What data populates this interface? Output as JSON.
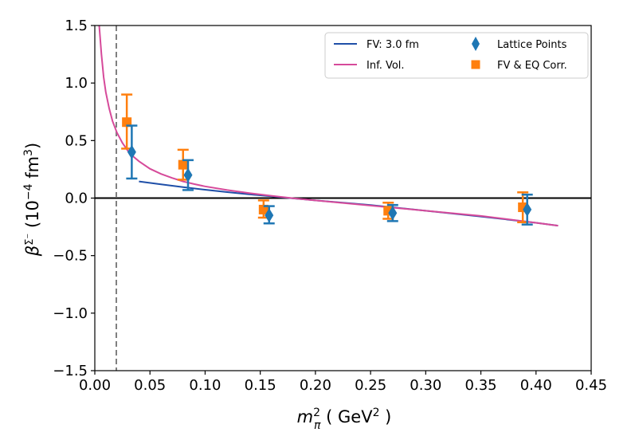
{
  "chart_data": {
    "type": "scatter",
    "xlim": [
      0.0,
      0.45
    ],
    "ylim": [
      -1.5,
      1.5
    ],
    "x_ticks": [
      "0.00",
      "0.05",
      "0.10",
      "0.15",
      "0.20",
      "0.25",
      "0.30",
      "0.35",
      "0.40",
      "0.45"
    ],
    "y_ticks": [
      "1.5",
      "1.0",
      "0.5",
      "0.0",
      "−0.5",
      "−1.0",
      "−1.5"
    ],
    "x_tick_values": [
      0.0,
      0.05,
      0.1,
      0.15,
      0.2,
      0.25,
      0.3,
      0.35,
      0.4,
      0.45
    ],
    "y_tick_values": [
      1.5,
      1.0,
      0.5,
      0.0,
      -0.5,
      -1.0,
      -1.5
    ],
    "xlabel": {
      "prefix": "m",
      "sup": "2",
      "sub": "π",
      "unit": " ( GeV",
      "unit_sup": "2",
      "unit_end": " )"
    },
    "ylabel": {
      "prefix": "β",
      "sup": "Σ⁻",
      "unit": "  (10",
      "unit_sup": "−4",
      "unit_mid": " fm",
      "unit_sup2": "3",
      "unit_end": ")"
    },
    "grid": false,
    "legend_position": "top-right",
    "legend": {
      "fv_label": "FV: 3.0 fm",
      "inf_label": "Inf. Vol.",
      "lattice_label": "Lattice Points",
      "corr_label": "FV & EQ Corr."
    },
    "colors": {
      "fv_curve": "#1f4fa8",
      "inf_curve": "#d64a9a",
      "lattice": "#1f77b4",
      "corrected": "#ff7f0e",
      "vline": "#808080",
      "hline": "#000000"
    },
    "reference_lines": {
      "vertical_x": 0.0195,
      "horizontal_y": 0.0
    },
    "series": [
      {
        "name": "Lattice Points",
        "marker": "diamond",
        "points": [
          {
            "x": 0.0335,
            "y": 0.4,
            "lo": 0.17,
            "hi": 0.63
          },
          {
            "x": 0.0845,
            "y": 0.2,
            "lo": 0.07,
            "hi": 0.33
          },
          {
            "x": 0.158,
            "y": -0.15,
            "lo": -0.22,
            "hi": -0.07
          },
          {
            "x": 0.27,
            "y": -0.13,
            "lo": -0.2,
            "hi": -0.06
          },
          {
            "x": 0.392,
            "y": -0.1,
            "lo": -0.23,
            "hi": 0.03
          }
        ]
      },
      {
        "name": "FV & EQ Corr.",
        "marker": "square",
        "points": [
          {
            "x": 0.029,
            "y": 0.66,
            "lo": 0.43,
            "hi": 0.9
          },
          {
            "x": 0.08,
            "y": 0.29,
            "lo": 0.16,
            "hi": 0.42
          },
          {
            "x": 0.153,
            "y": -0.1,
            "lo": -0.17,
            "hi": -0.02
          },
          {
            "x": 0.266,
            "y": -0.11,
            "lo": -0.18,
            "hi": -0.04
          },
          {
            "x": 0.388,
            "y": -0.08,
            "lo": -0.21,
            "hi": 0.05
          }
        ]
      },
      {
        "name": "FV: 3.0 fm",
        "marker": "line",
        "x": [
          0.04,
          0.06,
          0.08,
          0.1,
          0.12,
          0.14,
          0.16,
          0.18,
          0.2,
          0.25,
          0.3,
          0.35,
          0.4,
          0.42
        ],
        "y": [
          0.145,
          0.12,
          0.095,
          0.073,
          0.052,
          0.033,
          0.015,
          -0.003,
          -0.02,
          -0.06,
          -0.11,
          -0.16,
          -0.215,
          -0.24
        ]
      },
      {
        "name": "Inf. Vol.",
        "marker": "line",
        "x": [
          0.004,
          0.006,
          0.008,
          0.01,
          0.013,
          0.016,
          0.02,
          0.025,
          0.03,
          0.035,
          0.04,
          0.05,
          0.06,
          0.07,
          0.08,
          0.09,
          0.1,
          0.12,
          0.14,
          0.16,
          0.18,
          0.2,
          0.25,
          0.3,
          0.35,
          0.4,
          0.42
        ],
        "y": [
          1.5,
          1.25,
          1.05,
          0.92,
          0.78,
          0.67,
          0.57,
          0.48,
          0.41,
          0.36,
          0.32,
          0.255,
          0.21,
          0.175,
          0.145,
          0.122,
          0.102,
          0.07,
          0.043,
          0.02,
          -0.002,
          -0.02,
          -0.065,
          -0.11,
          -0.155,
          -0.215,
          -0.24
        ]
      }
    ]
  }
}
